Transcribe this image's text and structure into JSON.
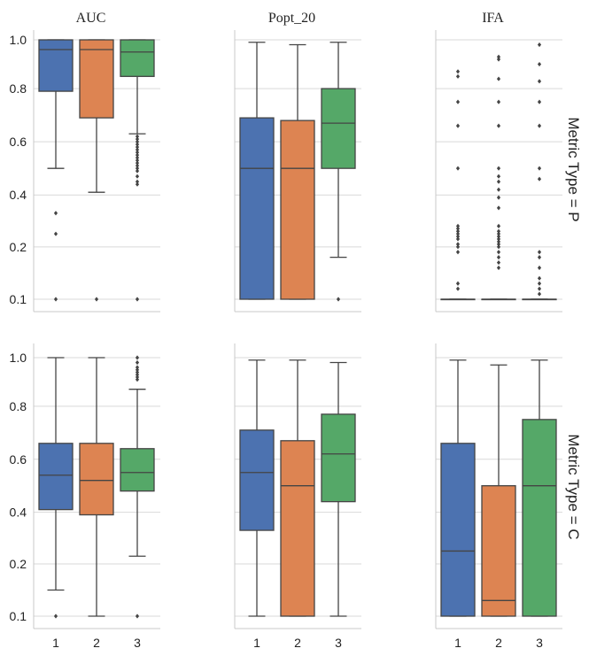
{
  "chart_data": {
    "type": "box",
    "col_titles": [
      "AUC",
      "Popt_20",
      "IFA"
    ],
    "row_labels": [
      "Metric Type = P",
      "Metric Type = C"
    ],
    "categories": [
      "1",
      "2",
      "3"
    ],
    "y_tick_labels": [
      "0.1",
      "0.2",
      "0.4",
      "0.6",
      "0.8",
      "1.0"
    ],
    "colors": [
      "#4c72b0",
      "#dd8452",
      "#55a868"
    ],
    "panels": [
      {
        "row": 0,
        "col": 0,
        "boxes": [
          {
            "q1": 0.79,
            "median": 0.96,
            "q3": 1.0,
            "whislo": 0.5,
            "whishi": 1.0,
            "fliers": [
              0.33,
              0.25,
              0.1
            ]
          },
          {
            "q1": 0.69,
            "median": 0.96,
            "q3": 1.0,
            "whislo": 0.41,
            "whishi": 1.0,
            "fliers": [
              0.1
            ]
          },
          {
            "q1": 0.85,
            "median": 0.95,
            "q3": 1.0,
            "whislo": 0.63,
            "whishi": 1.0,
            "fliers": [
              0.62,
              0.61,
              0.6,
              0.59,
              0.58,
              0.57,
              0.56,
              0.55,
              0.54,
              0.53,
              0.52,
              0.51,
              0.5,
              0.49,
              0.47,
              0.45,
              0.44,
              0.1
            ]
          }
        ]
      },
      {
        "row": 0,
        "col": 1,
        "boxes": [
          {
            "q1": 0.1,
            "median": 0.5,
            "q3": 0.69,
            "whislo": 0.1,
            "whishi": 0.99,
            "fliers": []
          },
          {
            "q1": 0.1,
            "median": 0.5,
            "q3": 0.68,
            "whislo": 0.1,
            "whishi": 0.98,
            "fliers": []
          },
          {
            "q1": 0.5,
            "median": 0.67,
            "q3": 0.8,
            "whislo": 0.18,
            "whishi": 0.99,
            "fliers": [
              0.1
            ]
          }
        ]
      },
      {
        "row": 0,
        "col": 2,
        "boxes": [
          {
            "q1": 0.1,
            "median": 0.1,
            "q3": 0.1,
            "whislo": 0.1,
            "whishi": 0.1,
            "fliers": [
              0.87,
              0.85,
              0.75,
              0.66,
              0.5,
              0.28,
              0.27,
              0.26,
              0.25,
              0.24,
              0.23,
              0.21,
              0.2,
              0.19,
              0.13,
              0.12
            ]
          },
          {
            "q1": 0.1,
            "median": 0.1,
            "q3": 0.1,
            "whislo": 0.1,
            "whishi": 0.1,
            "fliers": [
              0.93,
              0.92,
              0.84,
              0.75,
              0.66,
              0.5,
              0.47,
              0.45,
              0.42,
              0.39,
              0.35,
              0.28,
              0.26,
              0.25,
              0.24,
              0.23,
              0.22,
              0.21,
              0.2,
              0.19,
              0.18,
              0.17,
              0.16
            ]
          },
          {
            "q1": 0.1,
            "median": 0.1,
            "q3": 0.1,
            "whislo": 0.1,
            "whishi": 0.1,
            "fliers": [
              0.98,
              0.9,
              0.83,
              0.75,
              0.66,
              0.5,
              0.46,
              0.19,
              0.18,
              0.16,
              0.14,
              0.13,
              0.12,
              0.11
            ]
          }
        ]
      },
      {
        "row": 1,
        "col": 0,
        "boxes": [
          {
            "q1": 0.41,
            "median": 0.54,
            "q3": 0.66,
            "whislo": 0.15,
            "whishi": 1.0,
            "fliers": [
              0.1
            ]
          },
          {
            "q1": 0.39,
            "median": 0.52,
            "q3": 0.66,
            "whislo": 0.1,
            "whishi": 1.0,
            "fliers": []
          },
          {
            "q1": 0.48,
            "median": 0.55,
            "q3": 0.64,
            "whislo": 0.23,
            "whishi": 0.87,
            "fliers": [
              1.0,
              0.98,
              0.96,
              0.95,
              0.94,
              0.93,
              0.92,
              0.91,
              0.1
            ]
          }
        ]
      },
      {
        "row": 1,
        "col": 1,
        "boxes": [
          {
            "q1": 0.33,
            "median": 0.55,
            "q3": 0.71,
            "whislo": 0.1,
            "whishi": 0.99,
            "fliers": []
          },
          {
            "q1": 0.1,
            "median": 0.5,
            "q3": 0.67,
            "whislo": 0.1,
            "whishi": 0.99,
            "fliers": []
          },
          {
            "q1": 0.44,
            "median": 0.62,
            "q3": 0.77,
            "whislo": 0.1,
            "whishi": 0.98,
            "fliers": []
          }
        ]
      },
      {
        "row": 1,
        "col": 2,
        "boxes": [
          {
            "q1": 0.1,
            "median": 0.25,
            "q3": 0.66,
            "whislo": 0.1,
            "whishi": 0.99,
            "fliers": []
          },
          {
            "q1": 0.1,
            "median": 0.13,
            "q3": 0.5,
            "whislo": 0.1,
            "whishi": 0.97,
            "fliers": []
          },
          {
            "q1": 0.1,
            "median": 0.5,
            "q3": 0.75,
            "whislo": 0.1,
            "whishi": 0.99,
            "fliers": []
          }
        ]
      }
    ]
  }
}
